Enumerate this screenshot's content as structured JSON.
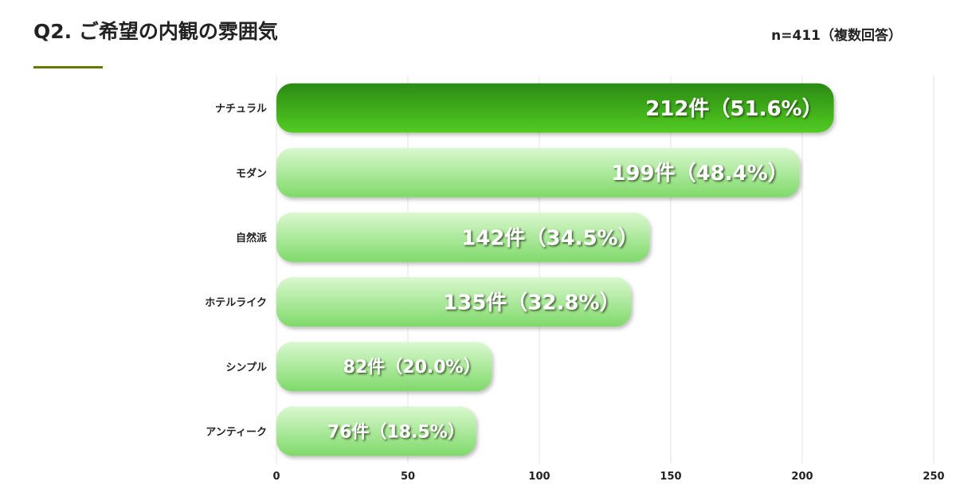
{
  "header": {
    "title": "Q2. ご希望の内観の雰囲気",
    "sample_note": "n=411（複数回答）"
  },
  "colors": {
    "accent_underline": "#5f7d00",
    "highlight_bar_dark": "#2b8a12",
    "highlight_bar_light": "#52cc23",
    "bar_light_top": "#daf8cf",
    "bar_light_bottom": "#7fd96a"
  },
  "chart_data": {
    "type": "bar",
    "orientation": "horizontal",
    "categories": [
      "ナチュラル",
      "モダン",
      "自然派",
      "ホテルライク",
      "シンプル",
      "アンティーク"
    ],
    "values": [
      212,
      199,
      142,
      135,
      82,
      76
    ],
    "value_labels": [
      "212件（51.6%）",
      "199件（48.4%）",
      "142件（34.5%）",
      "135件（32.8%）",
      "82件（20.0%）",
      "76件（18.5%）"
    ],
    "highlight_index": 0,
    "xlim": [
      0,
      250
    ],
    "x_ticks": [
      0,
      50,
      100,
      150,
      200,
      250
    ],
    "grid": true
  }
}
